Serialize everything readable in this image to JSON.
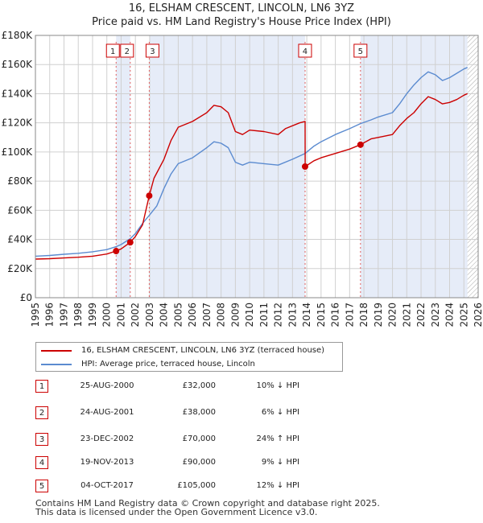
{
  "chart_data": {
    "type": "line",
    "title": "16, ELSHAM CRESCENT, LINCOLN, LN6 3YZ",
    "subtitle": "Price paid vs. HM Land Registry's House Price Index (HPI)",
    "xlabel": "",
    "ylabel": "",
    "xlim": [
      1995,
      2026
    ],
    "ylim": [
      0,
      180000
    ],
    "y_ticks": [
      0,
      20000,
      40000,
      60000,
      80000,
      100000,
      120000,
      140000,
      160000,
      180000
    ],
    "y_tick_labels": [
      "£0",
      "£20K",
      "£40K",
      "£60K",
      "£80K",
      "£100K",
      "£120K",
      "£140K",
      "£160K",
      "£180K"
    ],
    "x_ticks": [
      1995,
      1996,
      1997,
      1998,
      1999,
      2000,
      2001,
      2002,
      2003,
      2004,
      2005,
      2006,
      2007,
      2008,
      2009,
      2010,
      2011,
      2012,
      2013,
      2014,
      2015,
      2016,
      2017,
      2018,
      2019,
      2020,
      2021,
      2022,
      2023,
      2024,
      2025,
      2026
    ],
    "x_tick_labels": [
      "1995",
      "1996",
      "1997",
      "1998",
      "1999",
      "2000",
      "2001",
      "2002",
      "2003",
      "2004",
      "2005",
      "2006",
      "2007",
      "2008",
      "2009",
      "2010",
      "2011",
      "2012",
      "2013",
      "2014",
      "2015",
      "2016",
      "2017",
      "2018",
      "2019",
      "2020",
      "2021",
      "2022",
      "2023",
      "2024",
      "2025",
      "2026"
    ],
    "grid": true,
    "series": [
      {
        "name": "16, ELSHAM CRESCENT, LINCOLN, LN6 3YZ (terraced house)",
        "color": "#cc0000",
        "points": [
          [
            1995.0,
            26500
          ],
          [
            1996.0,
            26800
          ],
          [
            1997.0,
            27300
          ],
          [
            1998.0,
            27800
          ],
          [
            1999.0,
            28500
          ],
          [
            2000.0,
            30000
          ],
          [
            2000.65,
            32000
          ],
          [
            2001.0,
            33500
          ],
          [
            2001.64,
            38000
          ],
          [
            2002.0,
            42000
          ],
          [
            2002.5,
            50000
          ],
          [
            2002.97,
            70000
          ],
          [
            2003.3,
            82000
          ],
          [
            2004.0,
            95000
          ],
          [
            2004.5,
            108000
          ],
          [
            2005.0,
            117000
          ],
          [
            2006.0,
            121000
          ],
          [
            2007.0,
            127000
          ],
          [
            2007.5,
            132000
          ],
          [
            2008.0,
            131000
          ],
          [
            2008.5,
            127000
          ],
          [
            2009.0,
            114000
          ],
          [
            2009.5,
            112000
          ],
          [
            2010.0,
            115000
          ],
          [
            2011.0,
            114000
          ],
          [
            2012.0,
            112000
          ],
          [
            2012.5,
            116000
          ],
          [
            2013.5,
            120000
          ],
          [
            2013.88,
            121000
          ],
          [
            2013.89,
            90000
          ],
          [
            2014.5,
            94000
          ],
          [
            2015.0,
            96000
          ],
          [
            2016.0,
            99000
          ],
          [
            2017.0,
            102000
          ],
          [
            2017.76,
            105000
          ],
          [
            2018.5,
            109000
          ],
          [
            2019.0,
            110000
          ],
          [
            2020.0,
            112000
          ],
          [
            2020.5,
            118000
          ],
          [
            2021.0,
            123000
          ],
          [
            2021.5,
            127000
          ],
          [
            2022.0,
            133000
          ],
          [
            2022.5,
            138000
          ],
          [
            2023.0,
            136000
          ],
          [
            2023.5,
            133000
          ],
          [
            2024.0,
            134000
          ],
          [
            2024.5,
            136000
          ],
          [
            2025.0,
            139000
          ],
          [
            2025.25,
            140000
          ]
        ]
      },
      {
        "name": "HPI: Average price, terraced house, Lincoln",
        "color": "#5b8bd0",
        "points": [
          [
            1995.0,
            28500
          ],
          [
            1996.0,
            29000
          ],
          [
            1997.0,
            29800
          ],
          [
            1998.0,
            30500
          ],
          [
            1999.0,
            31500
          ],
          [
            2000.0,
            33000
          ],
          [
            2000.65,
            35000
          ],
          [
            2001.0,
            36500
          ],
          [
            2001.64,
            40500
          ],
          [
            2002.0,
            44000
          ],
          [
            2002.5,
            51000
          ],
          [
            2002.97,
            56500
          ],
          [
            2003.5,
            63000
          ],
          [
            2004.0,
            75000
          ],
          [
            2004.5,
            85000
          ],
          [
            2005.0,
            92000
          ],
          [
            2006.0,
            96000
          ],
          [
            2007.0,
            103000
          ],
          [
            2007.5,
            107000
          ],
          [
            2008.0,
            106000
          ],
          [
            2008.5,
            103000
          ],
          [
            2009.0,
            93000
          ],
          [
            2009.5,
            91000
          ],
          [
            2010.0,
            93000
          ],
          [
            2011.0,
            92000
          ],
          [
            2012.0,
            91000
          ],
          [
            2013.0,
            95000
          ],
          [
            2013.88,
            99000
          ],
          [
            2014.5,
            104000
          ],
          [
            2015.0,
            107000
          ],
          [
            2016.0,
            112000
          ],
          [
            2017.0,
            116000
          ],
          [
            2017.76,
            119500
          ],
          [
            2018.5,
            122000
          ],
          [
            2019.0,
            124000
          ],
          [
            2020.0,
            127000
          ],
          [
            2020.5,
            133000
          ],
          [
            2021.0,
            140000
          ],
          [
            2021.5,
            146000
          ],
          [
            2022.0,
            151000
          ],
          [
            2022.5,
            155000
          ],
          [
            2023.0,
            153000
          ],
          [
            2023.5,
            149000
          ],
          [
            2024.0,
            151000
          ],
          [
            2024.5,
            154000
          ],
          [
            2025.0,
            157000
          ],
          [
            2025.25,
            158000
          ]
        ]
      }
    ],
    "sales": [
      {
        "marker": "1",
        "x": 2000.65,
        "price": 32000,
        "date": "25-AUG-2000",
        "price_label": "£32,000",
        "hpi_label": "10% ↓ HPI"
      },
      {
        "marker": "2",
        "x": 2001.64,
        "price": 38000,
        "date": "24-AUG-2001",
        "price_label": "£38,000",
        "hpi_label": "6% ↓ HPI"
      },
      {
        "marker": "3",
        "x": 2002.97,
        "price": 70000,
        "date": "23-DEC-2002",
        "price_label": "£70,000",
        "hpi_label": "24% ↑ HPI"
      },
      {
        "marker": "4",
        "x": 2013.88,
        "price": 90000,
        "date": "19-NOV-2013",
        "price_label": "£90,000",
        "hpi_label": "9% ↓ HPI"
      },
      {
        "marker": "5",
        "x": 2017.76,
        "price": 105000,
        "date": "04-OCT-2017",
        "price_label": "£105,000",
        "hpi_label": "12% ↓ HPI"
      }
    ],
    "shaded_ranges": [
      [
        2000.65,
        2001.64
      ],
      [
        2002.97,
        2013.88
      ],
      [
        2017.76,
        2025.25
      ]
    ],
    "hatch_from_x": 2025.25
  },
  "legend": {
    "property_label": "16, ELSHAM CRESCENT, LINCOLN, LN6 3YZ (terraced house)",
    "hpi_label": "HPI: Average price, terraced house, Lincoln"
  },
  "footer": {
    "line1": "Contains HM Land Registry data © Crown copyright and database right 2025.",
    "line2": "This data is licensed under the Open Government Licence v3.0."
  },
  "colors": {
    "property": "#cc0000",
    "hpi": "#5b8bd0",
    "shade": "#e6ecf8",
    "grid": "#d0d0d0",
    "marker_line": "#e06060"
  }
}
